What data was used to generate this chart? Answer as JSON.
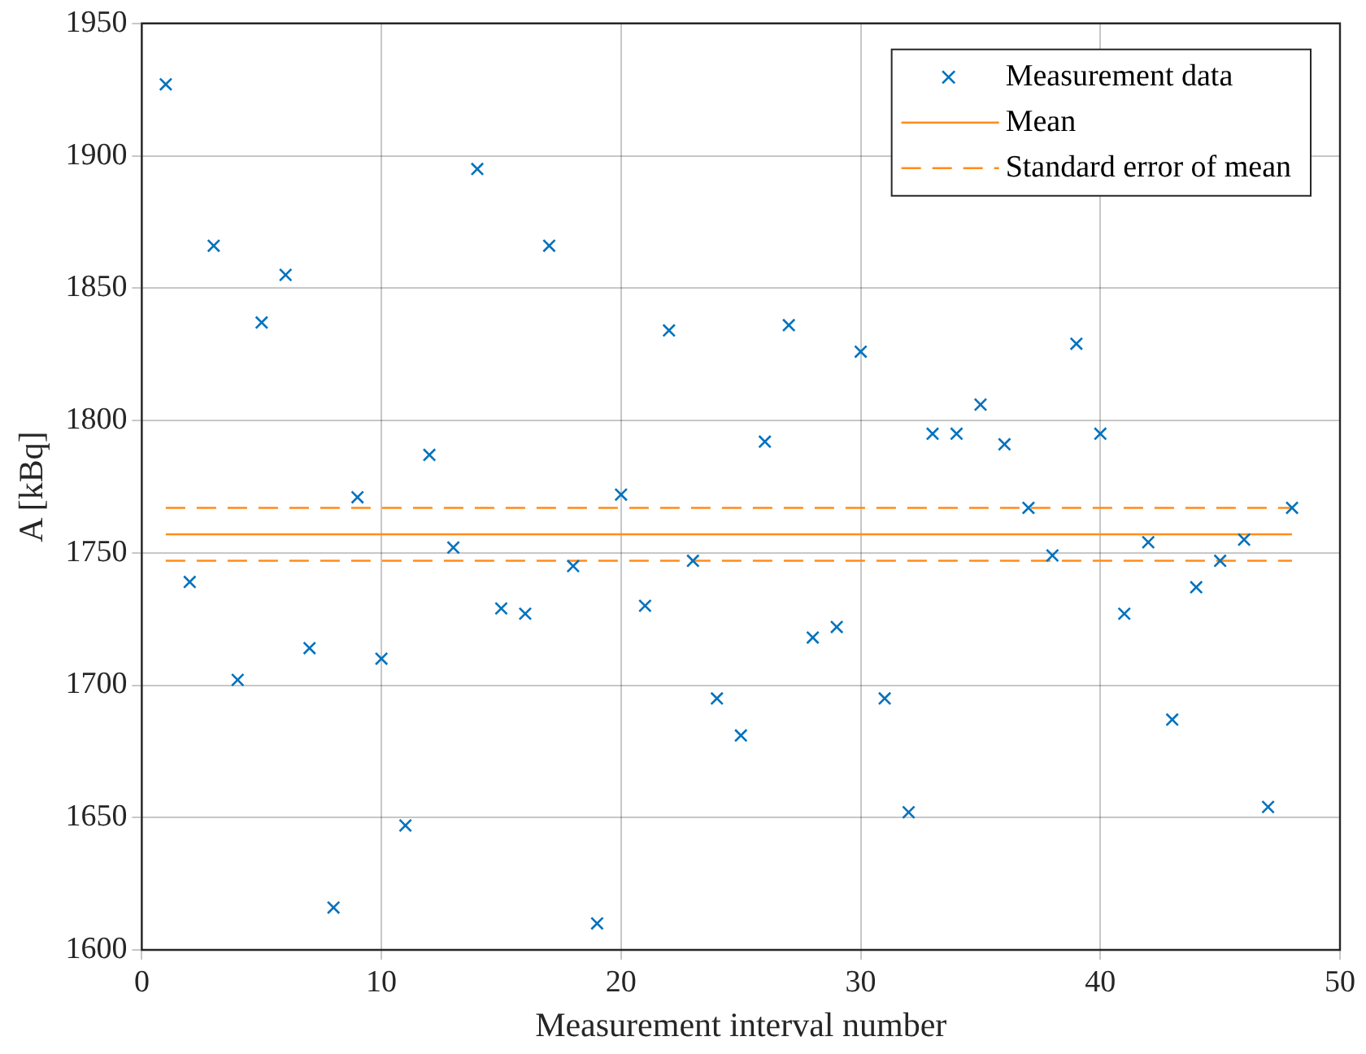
{
  "chart_data": {
    "type": "scatter",
    "xlabel": "Measurement interval number",
    "ylabel": "A [kBq]",
    "xlim": [
      0,
      50
    ],
    "xticks": [
      0,
      10,
      20,
      30,
      40,
      50
    ],
    "ylim": [
      1600,
      1950
    ],
    "yticks": [
      1600,
      1650,
      1700,
      1750,
      1800,
      1850,
      1900,
      1950
    ],
    "grid": true,
    "legend": "top right",
    "marker": "cross",
    "series": [
      {
        "name": "Measurement data",
        "color": "#0072bd",
        "x": [
          1,
          2,
          3,
          4,
          5,
          6,
          7,
          8,
          9,
          10,
          11,
          12,
          13,
          14,
          15,
          16,
          17,
          18,
          19,
          20,
          21,
          22,
          23,
          24,
          25,
          26,
          27,
          28,
          29,
          30,
          31,
          32,
          33,
          34,
          35,
          36,
          37,
          38,
          39,
          40,
          41,
          42,
          43,
          44,
          45,
          46,
          47,
          48
        ],
        "values": [
          1927,
          1739,
          1866,
          1702,
          1837,
          1855,
          1714,
          1616,
          1771,
          1710,
          1647,
          1787,
          1752,
          1895,
          1729,
          1727,
          1866,
          1745,
          1610,
          1772,
          1730,
          1834,
          1747,
          1695,
          1681,
          1792,
          1836,
          1718,
          1722,
          1826,
          1695,
          1652,
          1795,
          1795,
          1806,
          1791,
          1767,
          1749,
          1829,
          1795,
          1727,
          1754,
          1687,
          1737,
          1747,
          1755,
          1654,
          1767
        ]
      },
      {
        "name": "Mean",
        "type": "line",
        "color": "#ff8c1a",
        "line_style": "solid",
        "marker": "none",
        "x": [
          1,
          48
        ],
        "values": [
          1757,
          1757
        ]
      },
      {
        "name": "Standard error of mean",
        "type": "line",
        "color": "#ff8c1a",
        "line_style": "dashed",
        "marker": "none",
        "x": [
          1,
          48
        ],
        "values": [
          1767,
          1767
        ]
      },
      {
        "type": "line",
        "color": "#ff8c1a",
        "line_style": "dashed",
        "marker": "none",
        "x": [
          1,
          48
        ],
        "values": [
          1747,
          1747
        ]
      }
    ]
  }
}
